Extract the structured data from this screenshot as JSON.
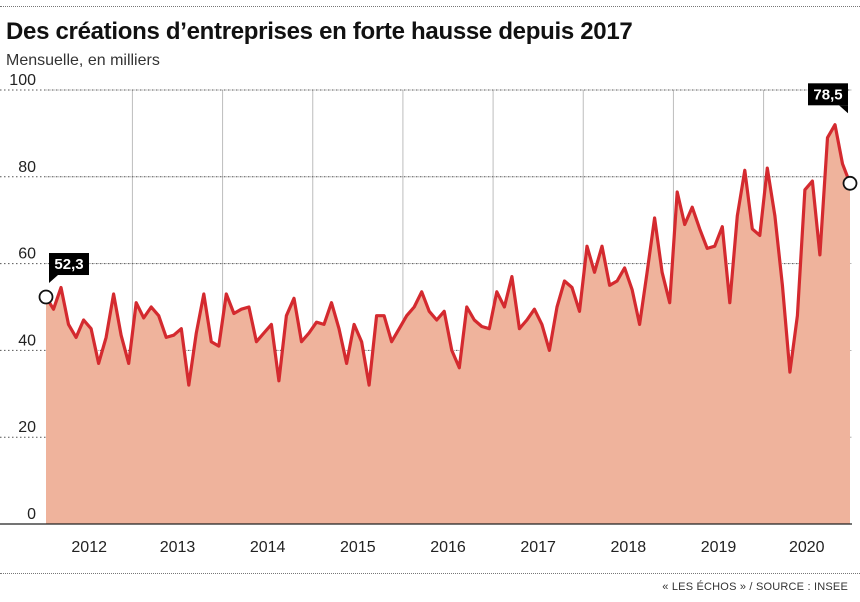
{
  "header": {
    "title": "Des créations d’entreprises en forte hausse depuis 2017",
    "subtitle": "Mensuelle, en milliers"
  },
  "footer": {
    "source": "« LES ÉCHOS » / SOURCE : INSEE"
  },
  "colors": {
    "line": "#d42a2f",
    "area": "#efb39c",
    "label_bg": "#000000",
    "label_text": "#ffffff"
  },
  "chart_data": {
    "type": "area",
    "ylim": [
      0,
      100
    ],
    "yticks": [
      0,
      20,
      40,
      60,
      80,
      100
    ],
    "ytick_labels": [
      "0",
      "20",
      "40",
      "60",
      "80",
      "100"
    ],
    "year_labels": [
      "2012",
      "2013",
      "2014",
      "2015",
      "2016",
      "2017",
      "2018",
      "2019",
      "2020"
    ],
    "grid": true,
    "annotations": [
      {
        "label": "52,3",
        "point_index": 0
      },
      {
        "label": "78,5",
        "point_index": 107
      }
    ],
    "values": [
      52.3,
      49.5,
      54.5,
      46,
      43,
      47,
      45,
      37,
      43,
      53,
      43.5,
      37,
      51,
      47.5,
      50,
      48,
      43,
      43.5,
      45,
      32,
      44,
      53,
      42,
      41,
      53,
      48.5,
      49.5,
      50,
      42,
      44,
      46,
      33,
      48,
      52,
      42,
      44,
      46.5,
      46,
      51,
      45,
      37,
      46,
      42,
      32,
      48,
      48,
      42,
      45,
      48,
      50,
      53.5,
      49,
      47,
      49,
      40,
      36,
      50,
      47,
      45.5,
      45,
      53.5,
      50,
      57,
      45,
      47,
      49.5,
      46,
      40,
      50,
      56,
      54.5,
      49,
      64,
      58,
      64,
      55,
      56,
      59,
      54,
      46,
      58,
      70.5,
      58,
      51,
      76.5,
      69,
      73,
      68,
      63.5,
      64,
      68.5,
      51,
      71,
      81.5,
      68,
      66.5,
      82,
      71,
      55,
      35,
      48,
      77,
      79,
      62,
      89,
      92,
      83,
      78.5
    ]
  }
}
